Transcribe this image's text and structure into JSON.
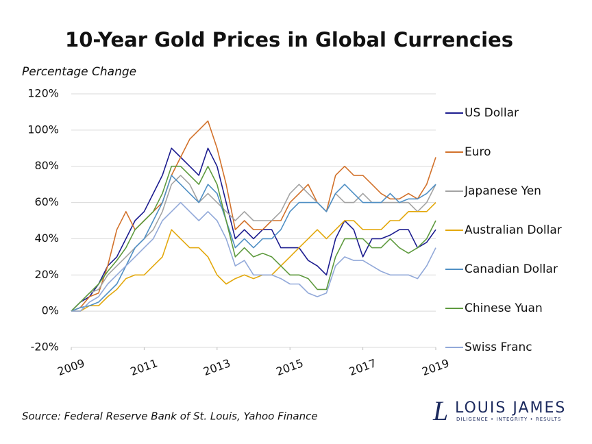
{
  "chart_data": {
    "type": "line",
    "title": "10-Year Gold Prices in Global Currencies",
    "ylabel": "Percentage Change",
    "x": [
      2009,
      2009.25,
      2009.5,
      2009.75,
      2010,
      2010.25,
      2010.5,
      2010.75,
      2011,
      2011.25,
      2011.5,
      2011.75,
      2012,
      2012.25,
      2012.5,
      2012.75,
      2013,
      2013.25,
      2013.5,
      2013.75,
      2014,
      2014.25,
      2014.5,
      2014.75,
      2015,
      2015.25,
      2015.5,
      2015.75,
      2016,
      2016.25,
      2016.5,
      2016.75,
      2017,
      2017.25,
      2017.5,
      2017.75,
      2018,
      2018.25,
      2018.5,
      2018.75,
      2019
    ],
    "xlim": [
      2009,
      2019
    ],
    "xticks": [
      2009,
      2011,
      2013,
      2015,
      2017,
      2019
    ],
    "ylim": [
      -20,
      120
    ],
    "yticks": [
      {
        "value": -20,
        "label": "-20%"
      },
      {
        "value": 0,
        "label": "0%"
      },
      {
        "value": 20,
        "label": "20%"
      },
      {
        "value": 40,
        "label": "40%"
      },
      {
        "value": 60,
        "label": "60%"
      },
      {
        "value": 80,
        "label": "80%"
      },
      {
        "value": 100,
        "label": "100%"
      },
      {
        "value": 120,
        "label": "120%"
      }
    ],
    "grid": true,
    "legend": "right",
    "series": [
      {
        "name": "US Dollar",
        "color": "#1c1c8f",
        "values": [
          0,
          5,
          8,
          15,
          25,
          30,
          40,
          50,
          55,
          65,
          75,
          90,
          85,
          80,
          75,
          90,
          80,
          60,
          40,
          45,
          40,
          45,
          45,
          35,
          35,
          35,
          28,
          25,
          20,
          40,
          50,
          45,
          30,
          40,
          40,
          42,
          45,
          45,
          35,
          38,
          45
        ]
      },
      {
        "name": "Euro",
        "color": "#d2712a",
        "values": [
          0,
          2,
          8,
          10,
          25,
          45,
          55,
          45,
          50,
          55,
          60,
          75,
          85,
          95,
          100,
          105,
          90,
          70,
          45,
          50,
          45,
          45,
          50,
          50,
          60,
          65,
          70,
          60,
          55,
          75,
          80,
          75,
          75,
          70,
          65,
          62,
          62,
          65,
          62,
          70,
          85
        ]
      },
      {
        "name": "Japanese Yen",
        "color": "#a3a3a3",
        "values": [
          0,
          5,
          10,
          12,
          20,
          25,
          30,
          35,
          40,
          45,
          55,
          70,
          75,
          70,
          60,
          65,
          60,
          55,
          50,
          55,
          50,
          50,
          50,
          55,
          65,
          70,
          65,
          60,
          55,
          65,
          60,
          60,
          65,
          60,
          60,
          60,
          60,
          60,
          55,
          60,
          70
        ]
      },
      {
        "name": "Australian Dollar",
        "color": "#e3a80c",
        "values": [
          0,
          0,
          3,
          3,
          8,
          12,
          18,
          20,
          20,
          25,
          30,
          45,
          40,
          35,
          35,
          30,
          20,
          15,
          18,
          20,
          18,
          20,
          20,
          25,
          30,
          35,
          40,
          45,
          40,
          45,
          50,
          50,
          45,
          45,
          45,
          50,
          50,
          55,
          55,
          55,
          60
        ]
      },
      {
        "name": "Canadian Dollar",
        "color": "#4f8fc4",
        "values": [
          0,
          2,
          3,
          5,
          10,
          15,
          25,
          35,
          40,
          50,
          60,
          75,
          70,
          65,
          60,
          70,
          65,
          50,
          35,
          40,
          35,
          40,
          40,
          45,
          55,
          60,
          60,
          60,
          55,
          65,
          70,
          65,
          60,
          60,
          60,
          65,
          60,
          62,
          62,
          65,
          70
        ]
      },
      {
        "name": "Chinese Yuan",
        "color": "#5e9a3e",
        "values": [
          0,
          5,
          10,
          15,
          22,
          28,
          35,
          45,
          50,
          55,
          65,
          80,
          80,
          75,
          70,
          80,
          70,
          50,
          30,
          35,
          30,
          32,
          30,
          25,
          20,
          20,
          18,
          12,
          12,
          30,
          40,
          40,
          40,
          35,
          35,
          40,
          35,
          32,
          35,
          40,
          50
        ]
      },
      {
        "name": "Swiss Franc",
        "color": "#92a9d9",
        "values": [
          0,
          0,
          5,
          8,
          15,
          20,
          25,
          30,
          35,
          40,
          50,
          55,
          60,
          55,
          50,
          55,
          50,
          40,
          25,
          28,
          20,
          20,
          20,
          18,
          15,
          15,
          10,
          8,
          10,
          25,
          30,
          28,
          28,
          25,
          22,
          20,
          20,
          20,
          18,
          25,
          35
        ]
      }
    ]
  },
  "source": "Source: Federal Reserve Bank of St. Louis, Yahoo Finance",
  "brand": {
    "mark": "L",
    "name": "LOUIS JAMES",
    "tagline": "DILIGENCE • INTEGRITY • RESULTS"
  }
}
